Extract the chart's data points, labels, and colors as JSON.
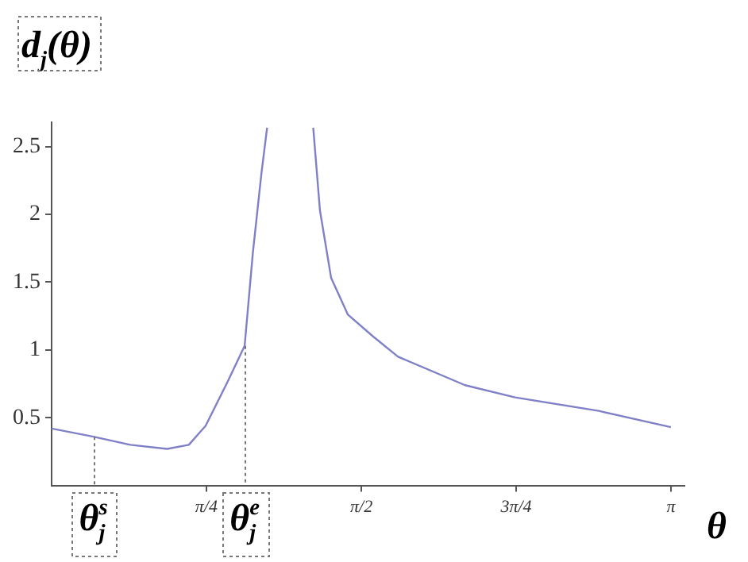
{
  "chart_data": {
    "type": "line",
    "xlabel": "θ",
    "ylabel": "d$_{j}$(θ)",
    "series": [
      {
        "color": "#8080c8",
        "x": [
          0,
          0.212,
          0.399,
          0.586,
          0.696,
          0.781,
          0.891,
          0.979,
          1.021,
          1.064,
          1.093,
          1.2,
          1.327,
          1.361,
          1.418,
          1.503,
          1.63,
          1.757,
          2.097,
          2.351,
          2.776,
          3.141
        ],
        "values": [
          0.42,
          0.36,
          0.3,
          0.27,
          0.3,
          0.44,
          0.76,
          1.03,
          1.72,
          2.3,
          2.64,
          null,
          2.64,
          2.03,
          1.53,
          1.26,
          1.1,
          0.95,
          0.74,
          0.65,
          0.55,
          0.43
        ]
      }
    ],
    "xlim": [
      0,
      3.21
    ],
    "ylim": [
      0,
      2.68
    ],
    "xticks": [
      {
        "value": 0.785,
        "label": "π/4"
      },
      {
        "value": 1.571,
        "label": "π/2"
      },
      {
        "value": 2.356,
        "label": "3π/4"
      },
      {
        "value": 3.142,
        "label": "π"
      }
    ],
    "yticks": [
      0.5,
      1,
      1.5,
      2,
      2.5
    ],
    "annotations": [
      {
        "text": "θ$_{j}$$^{s}$",
        "x": 0.212,
        "y": 0.36
      },
      {
        "text": "θ$_{j}$$^{e}$",
        "x": 0.979,
        "y": 1.03
      }
    ],
    "grid": false,
    "legend": false,
    "marker": "none",
    "line_style": "solid"
  }
}
